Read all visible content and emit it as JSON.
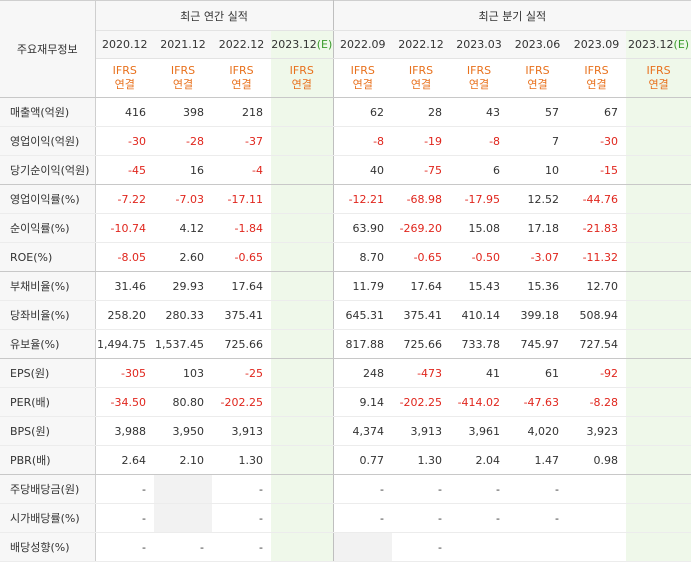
{
  "header": {
    "corner": "주요재무정보",
    "groups": [
      "최근 연간 실적",
      "최근 분기 실적"
    ]
  },
  "columns": [
    {
      "date": "2020.12",
      "standard": "IFRS",
      "basis": "연결"
    },
    {
      "date": "2021.12",
      "standard": "IFRS",
      "basis": "연결"
    },
    {
      "date": "2022.12",
      "standard": "IFRS",
      "basis": "연결"
    },
    {
      "date": "2023.12",
      "estimate": "(E)",
      "standard": "IFRS",
      "basis": "연결"
    },
    {
      "date": "2022.09",
      "standard": "IFRS",
      "basis": "연결"
    },
    {
      "date": "2022.12",
      "standard": "IFRS",
      "basis": "연결"
    },
    {
      "date": "2023.03",
      "standard": "IFRS",
      "basis": "연결"
    },
    {
      "date": "2023.06",
      "standard": "IFRS",
      "basis": "연결"
    },
    {
      "date": "2023.09",
      "standard": "IFRS",
      "basis": "연결"
    },
    {
      "date": "2023.12",
      "estimate": "(E)",
      "standard": "IFRS",
      "basis": "연결"
    }
  ],
  "table": {
    "rows": [
      {
        "label": "매출액(억원)",
        "values": [
          "416",
          "398",
          "218",
          null,
          "62",
          "28",
          "43",
          "57",
          "67",
          null
        ]
      },
      {
        "label": "영업이익(억원)",
        "values": [
          "-30",
          "-28",
          "-37",
          null,
          "-8",
          "-19",
          "-8",
          "7",
          "-30",
          null
        ]
      },
      {
        "label": "당기순이익(억원)",
        "values": [
          "-45",
          "16",
          "-4",
          null,
          "40",
          "-75",
          "6",
          "10",
          "-15",
          null
        ]
      },
      {
        "label": "영업이익률(%)",
        "values": [
          "-7.22",
          "-7.03",
          "-17.11",
          null,
          "-12.21",
          "-68.98",
          "-17.95",
          "12.52",
          "-44.76",
          null
        ]
      },
      {
        "label": "순이익률(%)",
        "values": [
          "-10.74",
          "4.12",
          "-1.84",
          null,
          "63.90",
          "-269.20",
          "15.08",
          "17.18",
          "-21.83",
          null
        ]
      },
      {
        "label": "ROE(%)",
        "values": [
          "-8.05",
          "2.60",
          "-0.65",
          null,
          "8.70",
          "-0.65",
          "-0.50",
          "-3.07",
          "-11.32",
          null
        ]
      },
      {
        "label": "부채비율(%)",
        "values": [
          "31.46",
          "29.93",
          "17.64",
          null,
          "11.79",
          "17.64",
          "15.43",
          "15.36",
          "12.70",
          null
        ]
      },
      {
        "label": "당좌비율(%)",
        "values": [
          "258.20",
          "280.33",
          "375.41",
          null,
          "645.31",
          "375.41",
          "410.14",
          "399.18",
          "508.94",
          null
        ]
      },
      {
        "label": "유보율(%)",
        "values": [
          "1,494.75",
          "1,537.45",
          "725.66",
          null,
          "817.88",
          "725.66",
          "733.78",
          "745.97",
          "727.54",
          null
        ]
      },
      {
        "label": "EPS(원)",
        "values": [
          "-305",
          "103",
          "-25",
          null,
          "248",
          "-473",
          "41",
          "61",
          "-92",
          null
        ]
      },
      {
        "label": "PER(배)",
        "values": [
          "-34.50",
          "80.80",
          "-202.25",
          null,
          "9.14",
          "-202.25",
          "-414.02",
          "-47.63",
          "-8.28",
          null
        ]
      },
      {
        "label": "BPS(원)",
        "values": [
          "3,988",
          "3,950",
          "3,913",
          null,
          "4,374",
          "3,913",
          "3,961",
          "4,020",
          "3,923",
          null
        ]
      },
      {
        "label": "PBR(배)",
        "values": [
          "2.64",
          "2.10",
          "1.30",
          null,
          "0.77",
          "1.30",
          "2.04",
          "1.47",
          "0.98",
          null
        ]
      },
      {
        "label": "주당배당금(원)",
        "values": [
          "-",
          null,
          "-",
          null,
          "-",
          "-",
          "-",
          "-",
          null,
          null
        ]
      },
      {
        "label": "시가배당률(%)",
        "values": [
          "-",
          null,
          "-",
          null,
          "-",
          "-",
          "-",
          "-",
          null,
          null
        ]
      },
      {
        "label": "배당성향(%)",
        "values": [
          "-",
          "-",
          "-",
          null,
          null,
          "-",
          null,
          null,
          null,
          null
        ]
      }
    ]
  }
}
